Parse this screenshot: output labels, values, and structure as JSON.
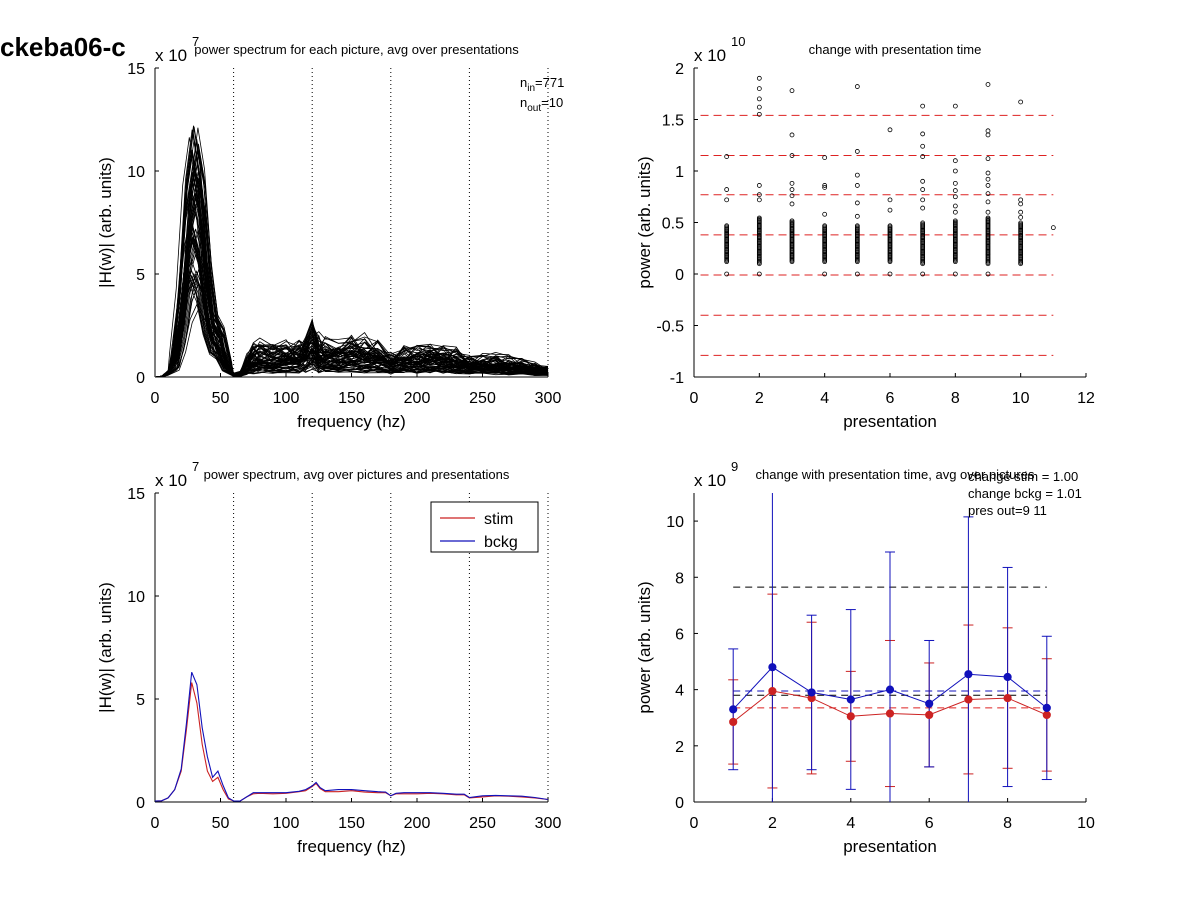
{
  "figure": {
    "id_label": "ckeba06-c"
  },
  "colors": {
    "stim": "#cc2222",
    "bckg": "#1111bb",
    "black": "#000000",
    "ref_red": "#dd2222"
  },
  "chart_data": [
    {
      "type": "line",
      "title": "power spectrum for each picture, avg over presentations",
      "xlabel": "frequency (hz)",
      "ylabel": "|H(w)| (arb. units)",
      "exponent_label": "x 10",
      "exponent_power": "7",
      "xlim": [
        0,
        300
      ],
      "ylim": [
        0,
        15
      ],
      "xticks": [
        "0",
        "50",
        "100",
        "150",
        "200",
        "250",
        "300"
      ],
      "yticks": [
        "0",
        "5",
        "10",
        "15"
      ],
      "vlines_x": [
        60,
        120,
        180,
        240,
        300
      ],
      "annotations": [
        "n_in=771",
        "n_out=10"
      ],
      "ann": {
        "n_in": "n",
        "n_in_sub": "in",
        "n_in_val": "=771",
        "n_out": "n",
        "n_out_sub": "out",
        "n_out_val": "=10"
      },
      "series_description_count": 771,
      "mean_series": {
        "x": [
          0,
          5,
          10,
          15,
          20,
          25,
          30,
          35,
          40,
          45,
          50,
          55,
          60,
          65,
          70,
          75,
          80,
          90,
          100,
          110,
          115,
          120,
          125,
          130,
          140,
          150,
          160,
          170,
          180,
          190,
          200,
          210,
          220,
          230,
          240,
          250,
          260,
          270,
          280,
          290,
          300
        ],
        "y": [
          0,
          0.02,
          0.15,
          0.6,
          2.2,
          4.8,
          6.0,
          5.0,
          2.8,
          1.5,
          1.2,
          0.4,
          0.05,
          0.08,
          0.3,
          0.45,
          0.5,
          0.45,
          0.5,
          0.5,
          0.6,
          0.8,
          0.6,
          0.55,
          0.5,
          0.55,
          0.55,
          0.5,
          0.35,
          0.45,
          0.45,
          0.45,
          0.42,
          0.4,
          0.3,
          0.3,
          0.3,
          0.28,
          0.25,
          0.2,
          0.15
        ]
      }
    },
    {
      "type": "scatter",
      "title": "change with presentation time",
      "xlabel": "presentation",
      "ylabel": "power (arb. units)",
      "exponent_label": "x 10",
      "exponent_power": "10",
      "xlim": [
        0,
        12
      ],
      "ylim": [
        -1,
        2
      ],
      "xticks": [
        "0",
        "2",
        "4",
        "6",
        "8",
        "10",
        "12"
      ],
      "yticks": [
        "-1",
        "-0.5",
        "0",
        "0.5",
        "1",
        "1.5",
        "2"
      ],
      "hlines_y": [
        1.54,
        1.15,
        0.77,
        0.38,
        -0.01,
        -0.4,
        -0.79
      ],
      "outliers": [
        {
          "x": 1,
          "y": [
            1.14,
            0.82,
            0.72,
            0.0
          ]
        },
        {
          "x": 2,
          "y": [
            1.9,
            1.8,
            1.7,
            1.62,
            1.55,
            0.86,
            0.77,
            0.72,
            0.0
          ]
        },
        {
          "x": 3,
          "y": [
            1.78,
            1.35,
            1.15,
            0.88,
            0.82,
            0.76,
            0.68
          ]
        },
        {
          "x": 4,
          "y": [
            1.13,
            0.86,
            0.84,
            0.58,
            0.0
          ]
        },
        {
          "x": 5,
          "y": [
            1.82,
            1.19,
            0.96,
            0.86,
            0.69,
            0.56,
            0.0
          ]
        },
        {
          "x": 6,
          "y": [
            1.4,
            0.72,
            0.62,
            0.0
          ]
        },
        {
          "x": 7,
          "y": [
            1.63,
            1.36,
            1.24,
            1.14,
            0.9,
            0.82,
            0.72,
            0.64,
            0.0
          ]
        },
        {
          "x": 8,
          "y": [
            1.63,
            1.1,
            1.0,
            0.88,
            0.81,
            0.75,
            0.66,
            0.6,
            0.0
          ]
        },
        {
          "x": 9,
          "y": [
            1.84,
            1.39,
            1.35,
            1.12,
            0.98,
            0.92,
            0.86,
            0.78,
            0.7,
            0.6,
            0.0
          ]
        },
        {
          "x": 10,
          "y": [
            1.67,
            0.72,
            0.68,
            0.6,
            0.55
          ]
        },
        {
          "x": 11,
          "y": [
            0.45
          ]
        }
      ],
      "dense_range": {
        "x": [
          1,
          2,
          3,
          4,
          5,
          6,
          7,
          8,
          9,
          10
        ],
        "low": [
          0.12,
          0.1,
          0.12,
          0.12,
          0.12,
          0.12,
          0.1,
          0.12,
          0.1,
          0.1
        ],
        "high": [
          0.48,
          0.55,
          0.52,
          0.48,
          0.48,
          0.48,
          0.5,
          0.52,
          0.55,
          0.5
        ]
      }
    },
    {
      "type": "line",
      "title": "power spectrum, avg over pictures and presentations",
      "xlabel": "frequency (hz)",
      "ylabel": "|H(w)| (arb. units)",
      "exponent_label": "x 10",
      "exponent_power": "7",
      "xlim": [
        0,
        300
      ],
      "ylim": [
        0,
        15
      ],
      "xticks": [
        "0",
        "50",
        "100",
        "150",
        "200",
        "250",
        "300"
      ],
      "yticks": [
        "0",
        "5",
        "10",
        "15"
      ],
      "vlines_x": [
        60,
        120,
        180,
        240,
        300
      ],
      "legend": {
        "position": "top-right"
      },
      "series": [
        {
          "name": "stim",
          "color_key": "stim",
          "x": [
            0,
            5,
            10,
            15,
            20,
            24,
            28,
            32,
            36,
            40,
            44,
            48,
            52,
            56,
            60,
            65,
            70,
            75,
            80,
            90,
            100,
            110,
            115,
            120,
            123,
            126,
            130,
            140,
            150,
            160,
            170,
            176,
            180,
            184,
            190,
            200,
            210,
            220,
            230,
            236,
            240,
            250,
            260,
            270,
            280,
            290,
            300
          ],
          "y": [
            0.05,
            0.06,
            0.2,
            0.6,
            1.5,
            3.5,
            5.8,
            4.8,
            2.8,
            1.5,
            1.0,
            1.2,
            0.6,
            0.15,
            0.05,
            0.05,
            0.25,
            0.4,
            0.42,
            0.4,
            0.42,
            0.5,
            0.55,
            0.75,
            0.9,
            0.65,
            0.5,
            0.5,
            0.55,
            0.48,
            0.45,
            0.45,
            0.3,
            0.4,
            0.4,
            0.4,
            0.42,
            0.4,
            0.35,
            0.35,
            0.2,
            0.25,
            0.3,
            0.28,
            0.25,
            0.2,
            0.12
          ]
        },
        {
          "name": "bckg",
          "color_key": "bckg",
          "x": [
            0,
            5,
            10,
            15,
            20,
            24,
            28,
            32,
            36,
            40,
            44,
            48,
            52,
            56,
            60,
            65,
            70,
            75,
            80,
            90,
            100,
            110,
            115,
            120,
            123,
            126,
            130,
            140,
            150,
            160,
            170,
            176,
            180,
            184,
            190,
            200,
            210,
            220,
            230,
            236,
            240,
            250,
            260,
            270,
            280,
            290,
            300
          ],
          "y": [
            0.05,
            0.06,
            0.2,
            0.6,
            1.6,
            3.8,
            6.3,
            5.7,
            3.6,
            2.2,
            1.2,
            1.5,
            0.8,
            0.2,
            0.05,
            0.05,
            0.25,
            0.45,
            0.45,
            0.45,
            0.45,
            0.52,
            0.6,
            0.78,
            0.95,
            0.7,
            0.55,
            0.6,
            0.6,
            0.55,
            0.5,
            0.48,
            0.3,
            0.42,
            0.45,
            0.45,
            0.45,
            0.42,
            0.38,
            0.38,
            0.22,
            0.3,
            0.32,
            0.3,
            0.28,
            0.22,
            0.12
          ]
        }
      ]
    },
    {
      "type": "line",
      "title": "change with presentation time, avg over pictures",
      "xlabel": "presentation",
      "ylabel": "power (arb. units)",
      "exponent_label": "x 10",
      "exponent_power": "9",
      "xlim": [
        0,
        10
      ],
      "ylim": [
        0,
        11
      ],
      "xticks": [
        "0",
        "2",
        "4",
        "6",
        "8",
        "10"
      ],
      "yticks": [
        "0",
        "2",
        "4",
        "6",
        "8",
        "10"
      ],
      "annotations": [
        "change stim = 1.00",
        "change bckg = 1.01",
        "pres out=9 11"
      ],
      "ref_lines": [
        {
          "y": 7.65,
          "color_key": "black",
          "x": [
            1,
            9
          ]
        },
        {
          "y": 3.8,
          "color_key": "black",
          "x": [
            1,
            9
          ]
        },
        {
          "y": 3.95,
          "color_key": "bckg",
          "x": [
            1,
            9
          ]
        },
        {
          "y": 3.35,
          "color_key": "ref_red",
          "x": [
            1,
            9
          ]
        }
      ],
      "series": [
        {
          "name": "stim",
          "color_key": "stim",
          "x": [
            1,
            2,
            3,
            4,
            5,
            6,
            7,
            8,
            9
          ],
          "y": [
            2.85,
            3.95,
            3.7,
            3.05,
            3.15,
            3.1,
            3.65,
            3.7,
            3.1
          ],
          "err": [
            1.5,
            3.45,
            2.7,
            1.6,
            2.6,
            1.85,
            2.65,
            2.5,
            2.0
          ]
        },
        {
          "name": "bckg",
          "color_key": "bckg",
          "x": [
            1,
            2,
            3,
            4,
            5,
            6,
            7,
            8,
            9
          ],
          "y": [
            3.3,
            4.8,
            3.9,
            3.65,
            4.0,
            3.5,
            4.55,
            4.45,
            3.35
          ],
          "err": [
            2.15,
            6.5,
            2.75,
            3.2,
            4.9,
            2.25,
            5.6,
            3.9,
            2.55
          ]
        }
      ]
    }
  ]
}
